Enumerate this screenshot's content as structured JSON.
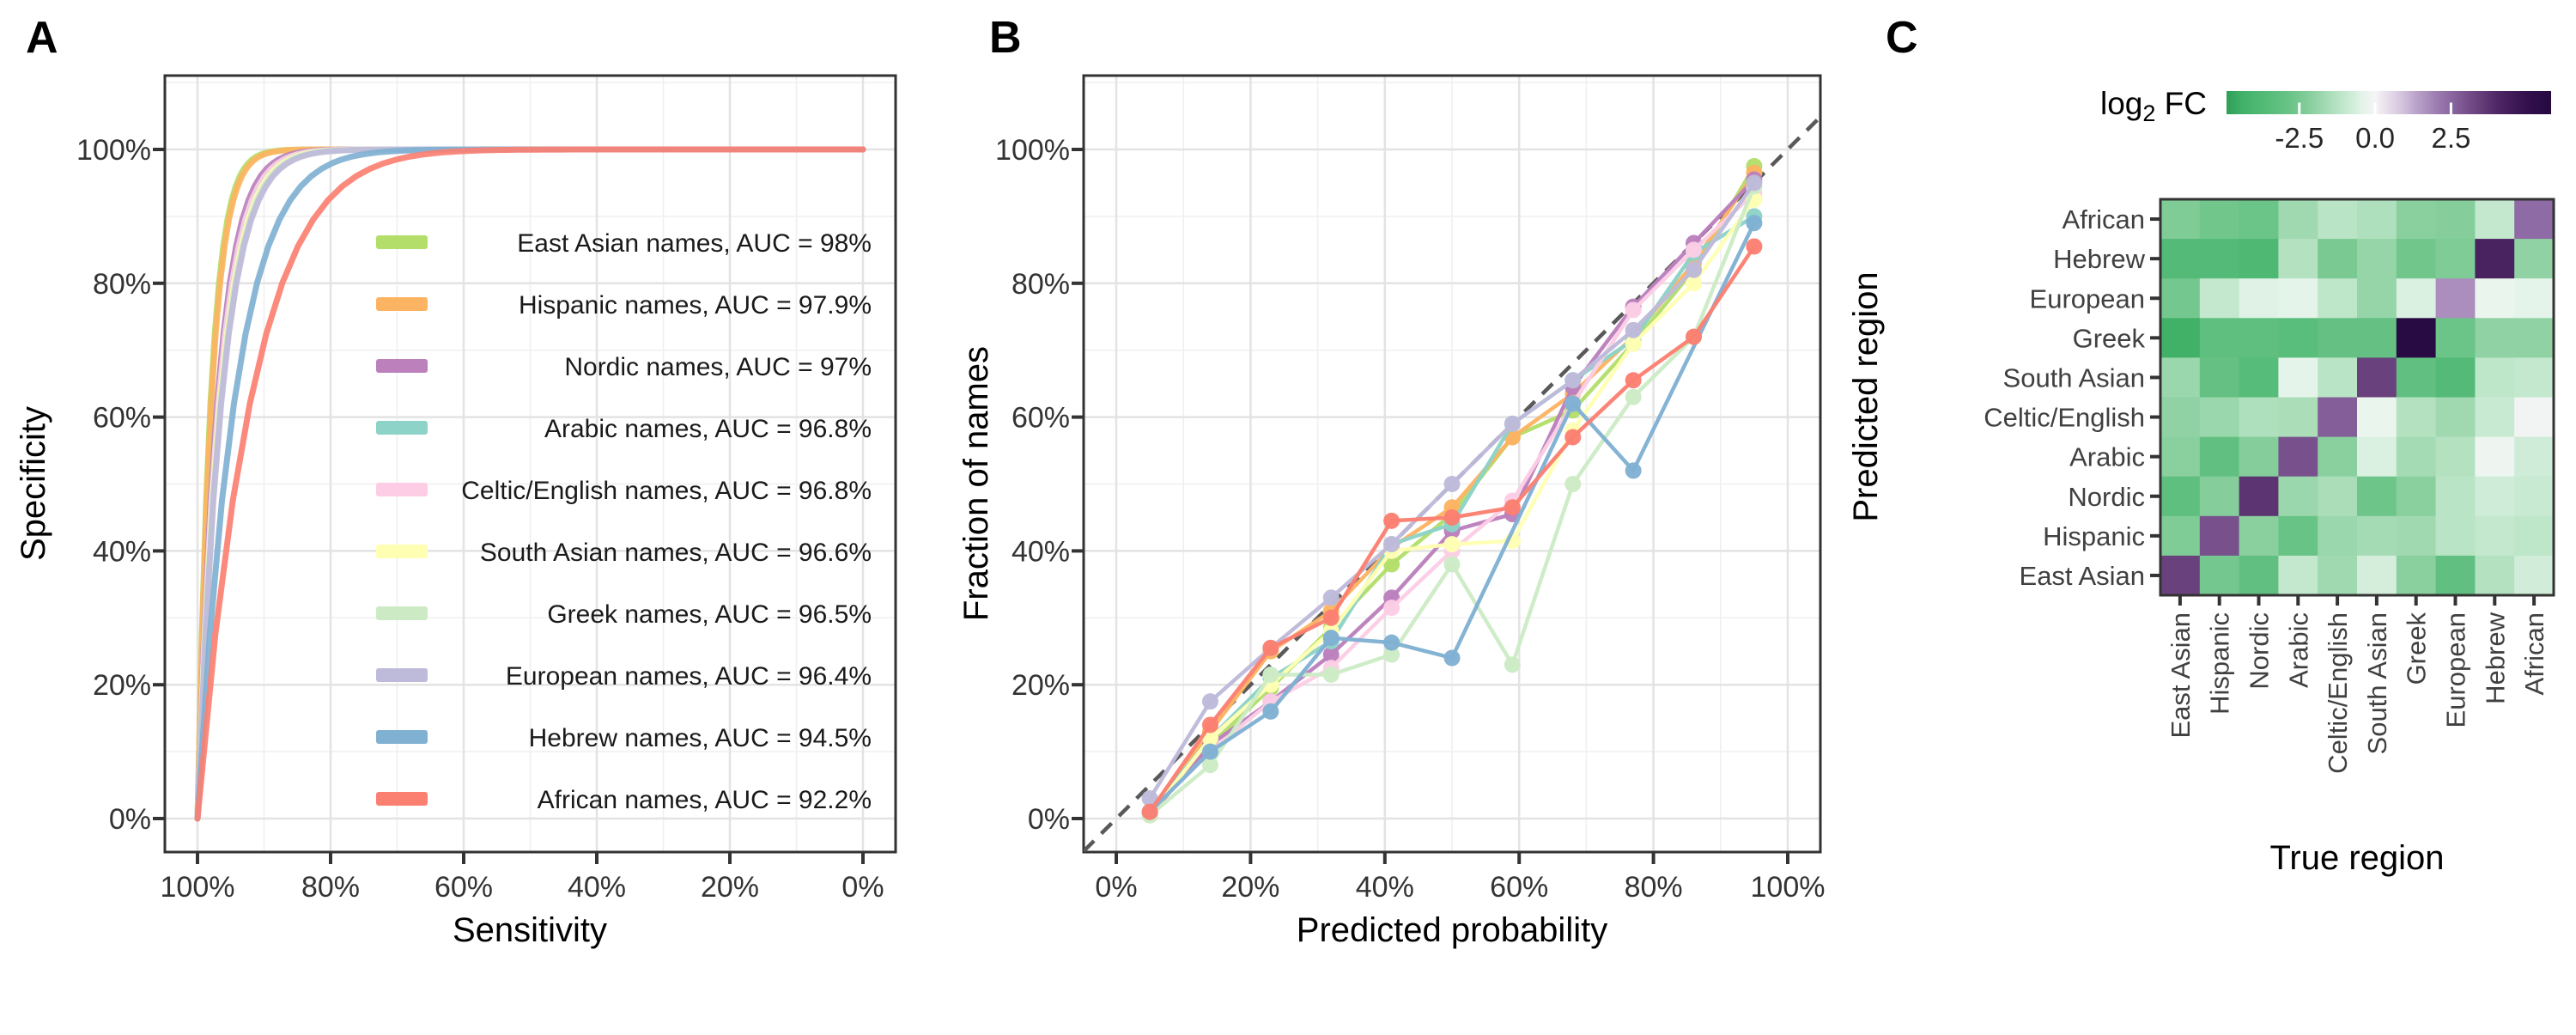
{
  "figure": {
    "panel_labels": {
      "a": "A",
      "b": "B",
      "c": "C"
    },
    "style": {
      "axis_text_color": "#333333",
      "title_text_color": "#000000",
      "grid_major_color": "#e3e3e3",
      "grid_minor_color": "#f0f0f0",
      "panel_border_color": "#333333",
      "diagonal_color": "#595959",
      "background": "#ffffff"
    }
  },
  "chart_data": [
    {
      "panel": "A",
      "type": "line",
      "subtype": "roc",
      "xlabel": "Sensitivity",
      "ylabel": "Specificity",
      "x_ticks": [
        100,
        80,
        60,
        40,
        20,
        0
      ],
      "y_ticks": [
        0,
        20,
        40,
        60,
        80,
        100
      ],
      "x_tick_labels": [
        "100%",
        "80%",
        "60%",
        "40%",
        "20%",
        "0%"
      ],
      "y_tick_labels": [
        "0%",
        "20%",
        "40%",
        "60%",
        "80%",
        "100%"
      ],
      "x_reversed": true,
      "xlim": [
        0,
        100
      ],
      "ylim": [
        0,
        100
      ],
      "grid": true,
      "legend_position": "inside-right",
      "series": [
        {
          "name": "East Asian",
          "legend_label": "East Asian names, AUC = 98%",
          "auc": 98.0,
          "color": "#B3DE69"
        },
        {
          "name": "Hispanic",
          "legend_label": "Hispanic names, AUC = 97.9%",
          "auc": 97.9,
          "color": "#FDB462"
        },
        {
          "name": "Nordic",
          "legend_label": "Nordic names, AUC = 97%",
          "auc": 97.0,
          "color": "#BC80BD"
        },
        {
          "name": "Arabic",
          "legend_label": "Arabic names, AUC = 96.8%",
          "auc": 96.8,
          "color": "#8DD3C7"
        },
        {
          "name": "Celtic/English",
          "legend_label": "Celtic/English names, AUC = 96.8%",
          "auc": 96.8,
          "color": "#FCCDE5"
        },
        {
          "name": "South Asian",
          "legend_label": "South Asian names, AUC = 96.6%",
          "auc": 96.6,
          "color": "#FFFFB3"
        },
        {
          "name": "Greek",
          "legend_label": "Greek names, AUC = 96.5%",
          "auc": 96.5,
          "color": "#CCEBC5"
        },
        {
          "name": "European",
          "legend_label": "European names, AUC = 96.4%",
          "auc": 96.4,
          "color": "#BEBADA"
        },
        {
          "name": "Hebrew",
          "legend_label": "Hebrew names, AUC = 94.5%",
          "auc": 94.5,
          "color": "#80B1D3"
        },
        {
          "name": "African",
          "legend_label": "African names, AUC = 92.2%",
          "auc": 92.2,
          "color": "#FB8072"
        }
      ]
    },
    {
      "panel": "B",
      "type": "line",
      "subtype": "calibration",
      "xlabel": "Predicted probability",
      "ylabel": "Fraction of names",
      "x_ticks": [
        0,
        20,
        40,
        60,
        80,
        100
      ],
      "y_ticks": [
        0,
        20,
        40,
        60,
        80,
        100
      ],
      "x_tick_labels": [
        "0%",
        "20%",
        "40%",
        "60%",
        "80%",
        "100%"
      ],
      "y_tick_labels": [
        "0%",
        "20%",
        "40%",
        "60%",
        "80%",
        "100%"
      ],
      "xlim": [
        0,
        100
      ],
      "ylim": [
        0,
        100
      ],
      "grid": true,
      "diagonal_reference": true,
      "series": [
        {
          "name": "East Asian",
          "color": "#B3DE69",
          "x": [
            5,
            14,
            23,
            32,
            41,
            50,
            59,
            68,
            77,
            86,
            95
          ],
          "y": [
            0.5,
            11,
            19.5,
            28.5,
            38,
            45.5,
            57,
            61,
            71,
            82,
            97.5
          ]
        },
        {
          "name": "Hispanic",
          "color": "#FDB462",
          "x": [
            5,
            14,
            23,
            32,
            41,
            50,
            59,
            68,
            77,
            86,
            95
          ],
          "y": [
            1,
            13,
            25,
            31,
            40.5,
            46.5,
            57,
            63.5,
            72,
            83,
            96.5
          ]
        },
        {
          "name": "Nordic",
          "color": "#BC80BD",
          "x": [
            5,
            14,
            23,
            32,
            41,
            50,
            59,
            68,
            77,
            86,
            95
          ],
          "y": [
            0.5,
            11,
            17.5,
            24.5,
            33,
            43,
            45.5,
            64.5,
            76.5,
            86,
            95.5
          ]
        },
        {
          "name": "Arabic",
          "color": "#8DD3C7",
          "x": [
            5,
            14,
            23,
            32,
            41,
            50,
            59,
            68,
            77,
            86,
            95
          ],
          "y": [
            1,
            12,
            21,
            26.5,
            41,
            44,
            59,
            65.5,
            71.5,
            84.5,
            90
          ]
        },
        {
          "name": "Celtic/English",
          "color": "#FCCDE5",
          "x": [
            5,
            14,
            23,
            32,
            41,
            50,
            59,
            68,
            77,
            86,
            95
          ],
          "y": [
            1,
            10,
            17.5,
            22.5,
            31.5,
            40,
            47.5,
            62,
            76,
            85,
            93.5
          ]
        },
        {
          "name": "South Asian",
          "color": "#FFFFB3",
          "x": [
            5,
            14,
            23,
            32,
            41,
            50,
            59,
            68,
            77,
            86,
            95
          ],
          "y": [
            0.5,
            12,
            20,
            28,
            40,
            41,
            41.5,
            58,
            71,
            80,
            92.5
          ]
        },
        {
          "name": "Greek",
          "color": "#CCEBC5",
          "x": [
            5,
            14,
            23,
            32,
            41,
            50,
            59,
            68,
            77,
            86,
            95
          ],
          "y": [
            0.5,
            8,
            21.5,
            21.5,
            24.5,
            38,
            23,
            50,
            63,
            72,
            94.5
          ]
        },
        {
          "name": "European",
          "color": "#BEBADA",
          "x": [
            5,
            14,
            23,
            32,
            41,
            50,
            59,
            68,
            77,
            86,
            95
          ],
          "y": [
            3,
            17.5,
            25.5,
            33,
            41,
            50,
            59,
            65.5,
            73,
            82,
            95
          ]
        },
        {
          "name": "Hebrew",
          "color": "#80B1D3",
          "x": [
            5,
            14,
            23,
            32,
            41,
            50,
            68,
            77,
            95
          ],
          "y": [
            1,
            10,
            16,
            27,
            26.3,
            24,
            62,
            52,
            89
          ]
        },
        {
          "name": "African",
          "color": "#FB8072",
          "x": [
            5,
            14,
            23,
            32,
            41,
            50,
            59,
            68,
            77,
            86,
            95
          ],
          "y": [
            1,
            14,
            25.5,
            30,
            44.5,
            45,
            46.5,
            57,
            65.5,
            72,
            85.5
          ]
        }
      ]
    },
    {
      "panel": "C",
      "type": "heatmap",
      "xlabel": "True region",
      "ylabel": "Predicted region",
      "legend_title": "log2 FC",
      "legend_title_parts": {
        "base": "log",
        "sub": "2",
        "rest": " FC"
      },
      "columns": [
        "East Asian",
        "Hispanic",
        "Nordic",
        "Arabic",
        "Celtic/English",
        "South Asian",
        "Greek",
        "European",
        "Hebrew",
        "African"
      ],
      "rows": [
        "African",
        "Hebrew",
        "European",
        "Greek",
        "South Asian",
        "Celtic/English",
        "Arabic",
        "Nordic",
        "Hispanic",
        "East Asian"
      ],
      "values": [
        [
          -2.3,
          -2.6,
          -2.8,
          -1.7,
          -1.2,
          -1.4,
          -2.1,
          -2.2,
          -1.0,
          2.4
        ],
        [
          -3.6,
          -3.6,
          -3.8,
          -1.3,
          -2.4,
          -1.9,
          -2.6,
          -2.3,
          4.2,
          -2.0
        ],
        [
          -2.5,
          -1.0,
          -0.5,
          -0.4,
          -1.1,
          -1.9,
          -0.6,
          1.7,
          -0.3,
          -0.4
        ],
        [
          -4.4,
          -3.2,
          -3.2,
          -3.4,
          -3.0,
          -3.0,
          5.6,
          -2.8,
          -2.0,
          -2.0
        ],
        [
          -1.8,
          -3.0,
          -3.5,
          -0.4,
          -1.2,
          3.4,
          -3.1,
          -3.6,
          -1.1,
          -1.0
        ],
        [
          -2.0,
          -1.8,
          -1.4,
          -1.5,
          2.7,
          -0.3,
          -1.3,
          -1.7,
          -0.9,
          -0.1
        ],
        [
          -2.1,
          -3.1,
          -2.2,
          3.0,
          -2.1,
          -0.6,
          -1.6,
          -1.3,
          -0.2,
          -0.8
        ],
        [
          -3.2,
          -2.2,
          3.7,
          -1.8,
          -1.5,
          -2.7,
          -2.1,
          -1.2,
          -0.8,
          -0.9
        ],
        [
          -2.3,
          3.0,
          -2.1,
          -2.9,
          -1.8,
          -1.6,
          -1.7,
          -1.2,
          -1.0,
          -1.1
        ],
        [
          3.4,
          -2.5,
          -3.1,
          -1.0,
          -1.7,
          -0.7,
          -2.1,
          -3.1,
          -1.3,
          -0.75
        ]
      ],
      "colorbar": {
        "tick_labels": [
          "-2.5",
          "0.0",
          "2.5"
        ],
        "tick_values": [
          -2.5,
          0.0,
          2.5
        ],
        "domain": [
          -4.9,
          5.8
        ],
        "green_color": "#2f9e58",
        "white_color": "#f6f4f6",
        "purple_color": "#250940"
      }
    }
  ]
}
